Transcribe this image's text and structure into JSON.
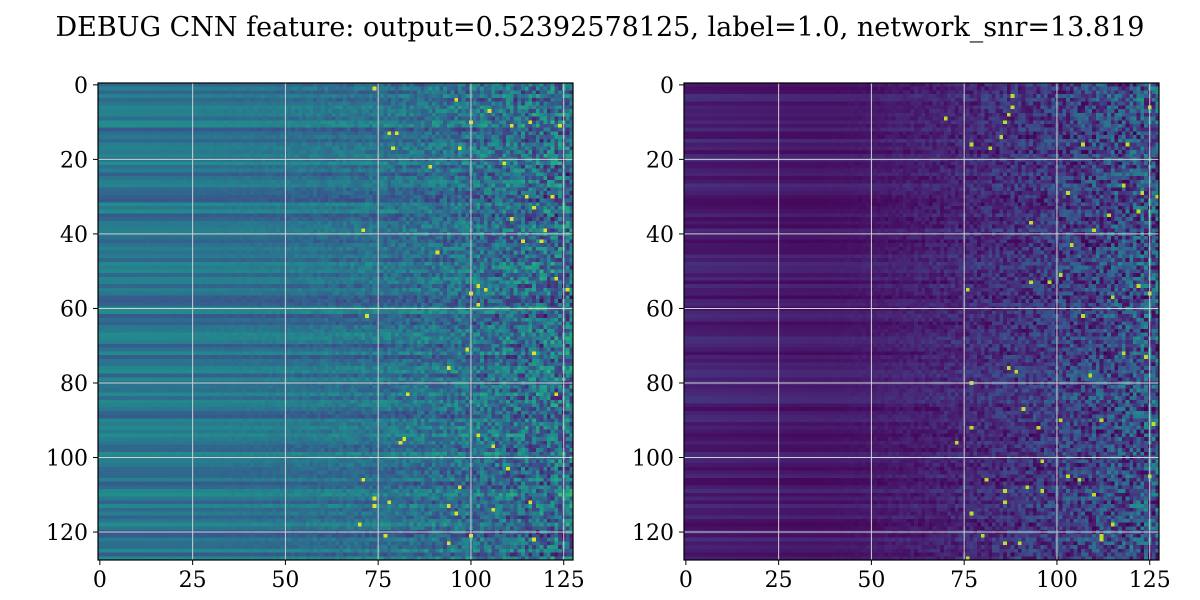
{
  "figure": {
    "title": "DEBUG CNN feature: output=0.52392578125, label=1.0, network_snr=13.819"
  },
  "colors": {
    "colormap": "viridis",
    "grid": "#d0d0d0",
    "background": "#ffffff"
  },
  "chart_data": [
    {
      "type": "heatmap",
      "colormap": "viridis",
      "grid": true,
      "xlim": [
        0,
        127
      ],
      "ylim": [
        127,
        0
      ],
      "xticks": [
        "0",
        "25",
        "50",
        "75",
        "100",
        "125"
      ],
      "yticks": [
        "0",
        "20",
        "40",
        "60",
        "80",
        "100",
        "120"
      ],
      "grid_x": [
        25,
        50,
        75,
        100,
        125
      ],
      "grid_y": [
        20,
        40,
        60,
        80,
        100,
        120
      ],
      "shape": [
        128,
        128
      ]
    },
    {
      "type": "heatmap",
      "colormap": "viridis",
      "grid": true,
      "xlim": [
        0,
        127
      ],
      "ylim": [
        127,
        0
      ],
      "xticks": [
        "0",
        "25",
        "50",
        "75",
        "100",
        "125"
      ],
      "yticks": [
        "0",
        "20",
        "40",
        "60",
        "80",
        "100",
        "120"
      ],
      "grid_x": [
        25,
        50,
        75,
        100,
        125
      ],
      "grid_y": [
        20,
        40,
        60,
        80,
        100,
        120
      ],
      "shape": [
        128,
        128
      ]
    }
  ]
}
